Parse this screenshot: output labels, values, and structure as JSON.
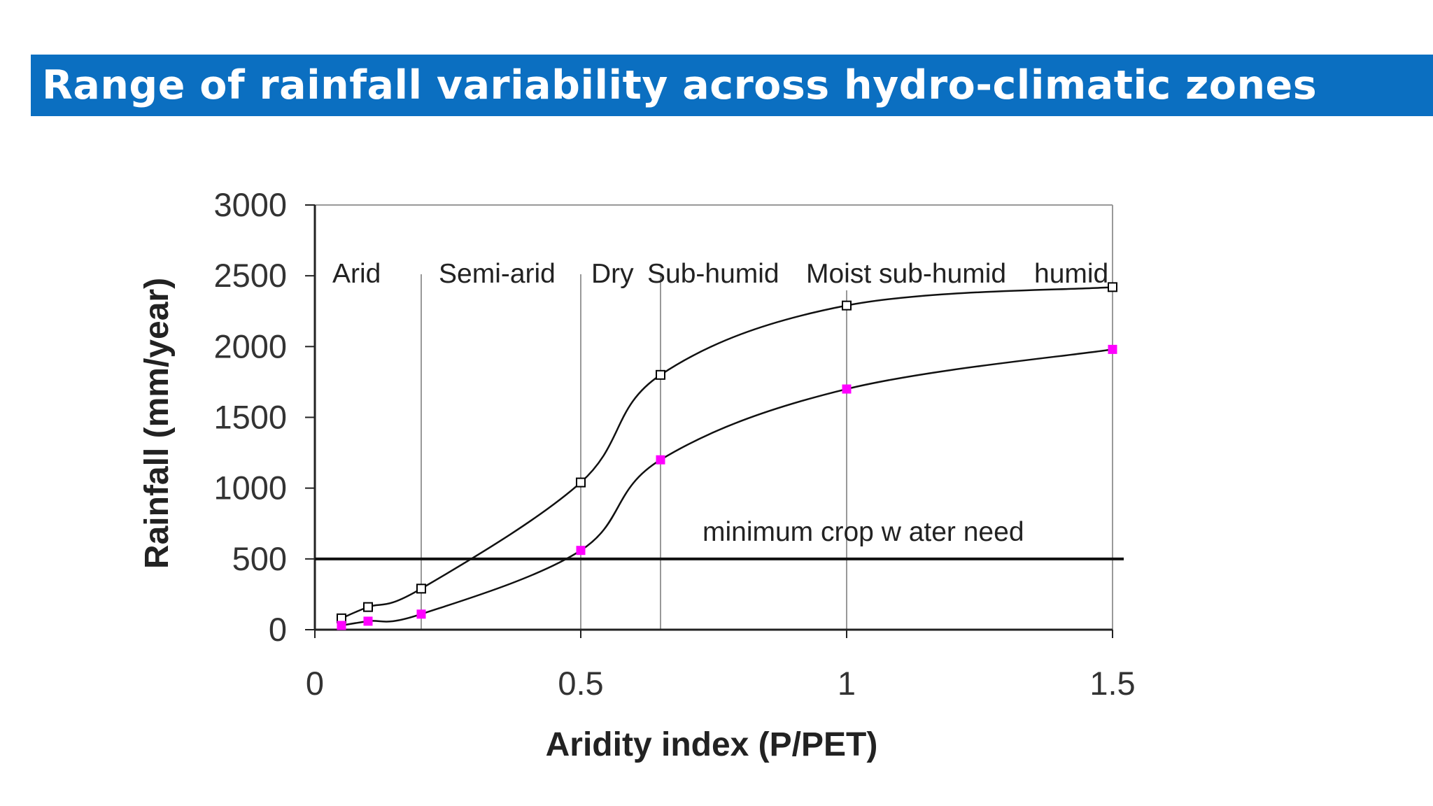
{
  "header": {
    "title": "Range of rainfall variability across hydro-climatic zones",
    "background_color": "#0b6fc1",
    "text_color": "#ffffff"
  },
  "chart_data": {
    "type": "line",
    "xlabel": "Aridity index (P/PET)",
    "ylabel": "Rainfall (mm/year)",
    "xlim": [
      0,
      1.5
    ],
    "ylim": [
      0,
      3000
    ],
    "x_ticks": [
      "0",
      "0.5",
      "1",
      "1.5"
    ],
    "y_ticks": [
      "0",
      "500",
      "1000",
      "1500",
      "2000",
      "2500",
      "3000"
    ],
    "series": [
      {
        "marker": "open-square",
        "color": "#000000",
        "x": [
          0.05,
          0.1,
          0.2,
          0.5,
          0.65,
          1.0,
          1.5
        ],
        "y": [
          80,
          160,
          290,
          1040,
          1800,
          2290,
          2420
        ]
      },
      {
        "marker": "filled-square",
        "color": "#ff00ff",
        "x": [
          0.05,
          0.1,
          0.2,
          0.5,
          0.65,
          1.0,
          1.5
        ],
        "y": [
          30,
          60,
          110,
          560,
          1200,
          1700,
          1980
        ]
      }
    ],
    "zone_dividers": [
      0.2,
      0.5,
      0.65,
      1.0,
      1.5
    ],
    "zones": [
      "Arid",
      "Semi-arid",
      "Dry",
      "Sub-humid",
      "Moist sub-humid",
      "humid"
    ],
    "threshold": {
      "y": 500,
      "label": "minimum crop w ater need"
    }
  }
}
